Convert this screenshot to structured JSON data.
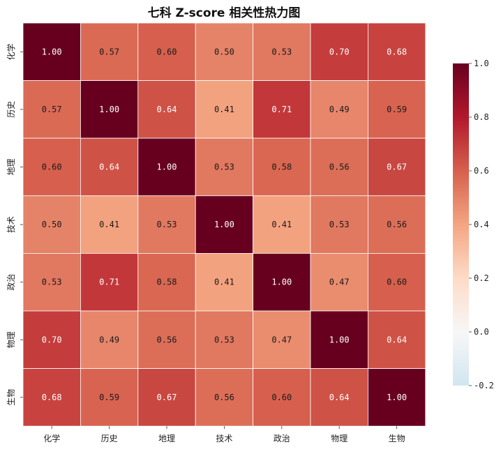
{
  "chart_data": {
    "type": "heatmap",
    "title": "七科 Z-score 相关性热力图",
    "rows": [
      "化学",
      "历史",
      "地理",
      "技术",
      "政治",
      "物理",
      "生物"
    ],
    "columns": [
      "化学",
      "历史",
      "地理",
      "技术",
      "政治",
      "物理",
      "生物"
    ],
    "values": [
      [
        1.0,
        0.57,
        0.6,
        0.5,
        0.53,
        0.7,
        0.68
      ],
      [
        0.57,
        1.0,
        0.64,
        0.41,
        0.71,
        0.49,
        0.59
      ],
      [
        0.6,
        0.64,
        1.0,
        0.53,
        0.58,
        0.56,
        0.67
      ],
      [
        0.5,
        0.41,
        0.53,
        1.0,
        0.41,
        0.53,
        0.56
      ],
      [
        0.53,
        0.71,
        0.58,
        0.41,
        1.0,
        0.47,
        0.6
      ],
      [
        0.7,
        0.49,
        0.56,
        0.53,
        0.47,
        1.0,
        0.64
      ],
      [
        0.68,
        0.59,
        0.67,
        0.56,
        0.6,
        0.64,
        1.0
      ]
    ],
    "value_format": "2 decimals",
    "colormap": "RdBu_r",
    "color_range": [
      -0.2,
      1.0
    ],
    "colorbar": {
      "placement": "right",
      "ticks": [
        -0.2,
        0.0,
        0.2,
        0.4,
        0.6,
        0.8,
        1.0
      ],
      "tick_labels": [
        "-0.2",
        "0.0",
        "0.2",
        "0.4",
        "0.6",
        "0.8",
        "1.0"
      ]
    },
    "cell_border_color": "#ffffff"
  }
}
